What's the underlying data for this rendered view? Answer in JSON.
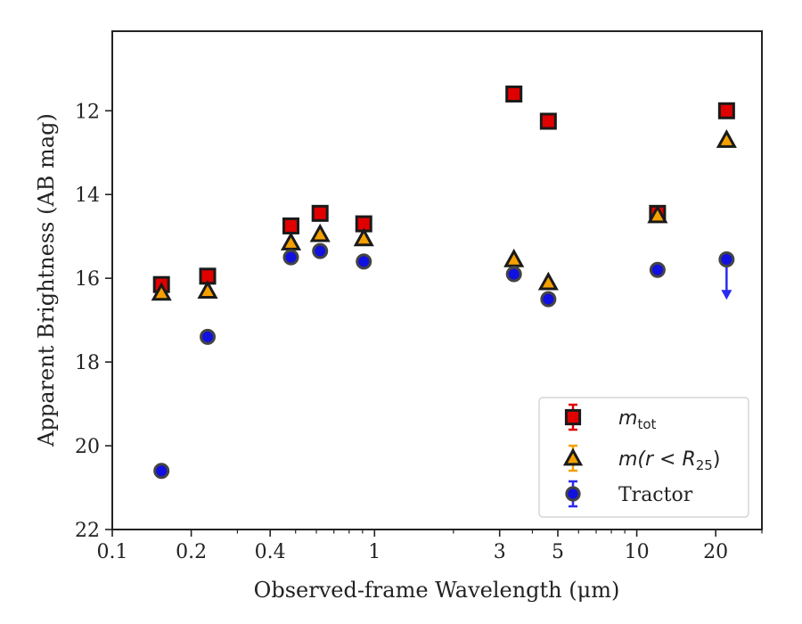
{
  "chart_data": {
    "type": "scatter",
    "xlabel": "Observed-frame Wavelength (μm)",
    "ylabel": "Apparent Brightness (AB mag)",
    "x_scale": "log",
    "xlim": [
      0.1,
      30
    ],
    "ylim": [
      22,
      10.1
    ],
    "y_inverted": true,
    "x_ticks": [
      0.1,
      0.2,
      0.4,
      1,
      3,
      5,
      10,
      20
    ],
    "x_tick_labels": [
      "0.1",
      "0.2",
      "0.4",
      "1",
      "3",
      "5",
      "10",
      "20"
    ],
    "y_ticks": [
      12,
      14,
      16,
      18,
      20,
      22
    ],
    "y_tick_labels": [
      "12",
      "14",
      "16",
      "18",
      "20",
      "22"
    ],
    "grid": false,
    "legend_position": "bottom-right",
    "series": [
      {
        "name": "m_tot",
        "legend_label": "m",
        "legend_sub": "tot",
        "marker": "square",
        "color": "#e00000",
        "points": [
          {
            "x": 0.154,
            "y": 16.15
          },
          {
            "x": 0.231,
            "y": 15.95
          },
          {
            "x": 0.48,
            "y": 14.75
          },
          {
            "x": 0.62,
            "y": 14.45
          },
          {
            "x": 0.91,
            "y": 14.7
          },
          {
            "x": 3.4,
            "y": 11.6
          },
          {
            "x": 4.6,
            "y": 12.25
          },
          {
            "x": 12.0,
            "y": 14.45
          },
          {
            "x": 22.0,
            "y": 12.0
          }
        ]
      },
      {
        "name": "m(r < R25)",
        "legend_label": "m(r < R",
        "legend_sub": "25",
        "legend_tail": ")",
        "marker": "triangle",
        "color": "#f5a000",
        "points": [
          {
            "x": 0.154,
            "y": 16.35
          },
          {
            "x": 0.231,
            "y": 16.3
          },
          {
            "x": 0.48,
            "y": 15.15
          },
          {
            "x": 0.62,
            "y": 14.95
          },
          {
            "x": 0.91,
            "y": 15.05
          },
          {
            "x": 3.4,
            "y": 15.55
          },
          {
            "x": 4.6,
            "y": 16.1
          },
          {
            "x": 12.0,
            "y": 14.5
          },
          {
            "x": 22.0,
            "y": 12.7
          }
        ]
      },
      {
        "name": "Tractor",
        "legend_label": "Tractor",
        "marker": "circle",
        "color": "#1010e0",
        "points": [
          {
            "x": 0.154,
            "y": 20.6
          },
          {
            "x": 0.231,
            "y": 17.4
          },
          {
            "x": 0.48,
            "y": 15.5
          },
          {
            "x": 0.62,
            "y": 15.35
          },
          {
            "x": 0.91,
            "y": 15.6
          },
          {
            "x": 3.4,
            "y": 15.9
          },
          {
            "x": 4.6,
            "y": 16.5
          },
          {
            "x": 12.0,
            "y": 15.8
          },
          {
            "x": 22.0,
            "y": 15.55,
            "upper_limit": true,
            "limit_to": 16.45
          }
        ]
      }
    ]
  }
}
